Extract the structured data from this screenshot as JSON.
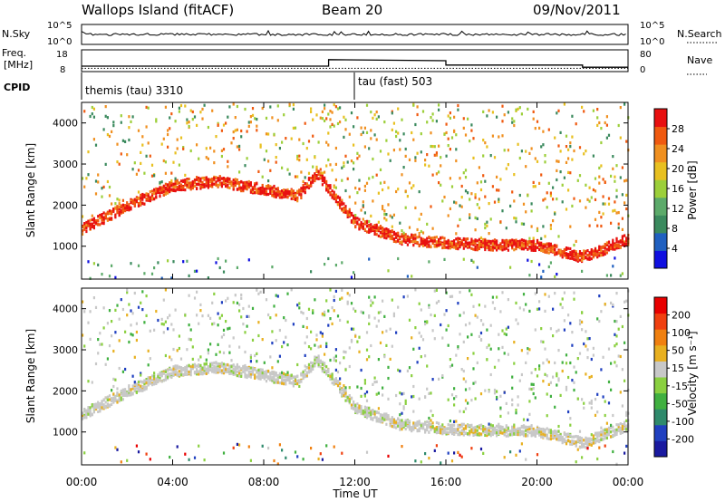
{
  "header": {
    "station": "Wallops Island (fitACF)",
    "beam": "Beam 20",
    "date": "09/Nov/2011"
  },
  "panels": {
    "nsky_label": "N.Sky",
    "nsky_ticks": [
      "10^5",
      "10^0"
    ],
    "nsearch_label": "N.Search",
    "nsearch_ticks": [
      "10^5",
      "10^0"
    ],
    "freq_label": "Freq.",
    "freq_unit": "[MHz]",
    "freq_ticks": [
      "18",
      "8"
    ],
    "nave_label": "Nave",
    "nave_ticks": [
      "80",
      "0"
    ],
    "cpid_label": "CPID",
    "cpid_segments": [
      "themis (tau) 3310",
      "tau (fast) 503"
    ]
  },
  "axes": {
    "ylabel": "Slant Range [km]",
    "xlabel": "Time UT",
    "y_ticks": [
      "1000",
      "2000",
      "3000",
      "4000"
    ],
    "x_ticks": [
      "00:00",
      "04:00",
      "08:00",
      "12:00",
      "16:00",
      "20:00",
      "00:00"
    ]
  },
  "colorbars": {
    "power": {
      "label": "Power [dB]",
      "ticks": [
        "4",
        "8",
        "12",
        "16",
        "20",
        "24",
        "28"
      ],
      "colors": [
        "#1010e0",
        "#2060c0",
        "#3b8a5e",
        "#5caa6a",
        "#9ccf3a",
        "#e8c020",
        "#f09020",
        "#f05a10",
        "#e81010"
      ]
    },
    "velocity": {
      "label": "Velocity [m s⁻¹]",
      "ticks": [
        "200",
        "100",
        "50",
        "15",
        "-15",
        "-50",
        "-100",
        "-200"
      ],
      "colors": [
        "#1a1aa0",
        "#2040c0",
        "#2f8a6c",
        "#40b040",
        "#8ad040",
        "#c8c8c8",
        "#e8b020",
        "#f08010",
        "#f04010",
        "#e80000"
      ]
    }
  },
  "chart_data": {
    "type": "heatmap",
    "title": "Wallops Island (fitACF)",
    "xlabel": "Time UT",
    "ylabel": "Slant Range [km]",
    "x_range_hours": [
      0,
      24
    ],
    "y_range_km": [
      200,
      4500
    ],
    "series": [
      {
        "name": "Power [dB]",
        "dominant_band_range_km": {
          "x_hours": [
            0,
            2,
            4,
            6,
            8,
            9.5,
            10.3,
            11,
            12,
            14,
            16,
            18,
            20,
            22,
            24
          ],
          "values": [
            1450,
            2000,
            2500,
            2600,
            2400,
            2250,
            2800,
            2300,
            1600,
            1200,
            1100,
            1050,
            1050,
            750,
            1200
          ]
        }
      },
      {
        "name": "Velocity [m s⁻¹]",
        "dominant_band_range_km": {
          "x_hours": [
            0,
            2,
            4,
            6,
            8,
            9.5,
            10.3,
            11,
            12,
            14,
            16,
            18,
            20,
            22,
            24
          ],
          "values": [
            1450,
            2000,
            2500,
            2600,
            2400,
            2250,
            2800,
            2300,
            1600,
            1200,
            1100,
            1050,
            1050,
            750,
            1200
          ]
        }
      }
    ],
    "freq_mhz": {
      "x_hours": [
        0,
        10.85,
        10.85,
        16,
        16,
        22,
        22,
        24
      ],
      "values": [
        10.5,
        10.5,
        13.5,
        13,
        11,
        11,
        10,
        10
      ]
    },
    "nave": {
      "x_hours": [
        0,
        10.85,
        10.85,
        16,
        16,
        22,
        22,
        24
      ],
      "values": [
        12,
        12,
        12,
        12,
        12,
        12,
        12,
        12
      ]
    },
    "cpid_change_hours": [
      0,
      12
    ]
  }
}
